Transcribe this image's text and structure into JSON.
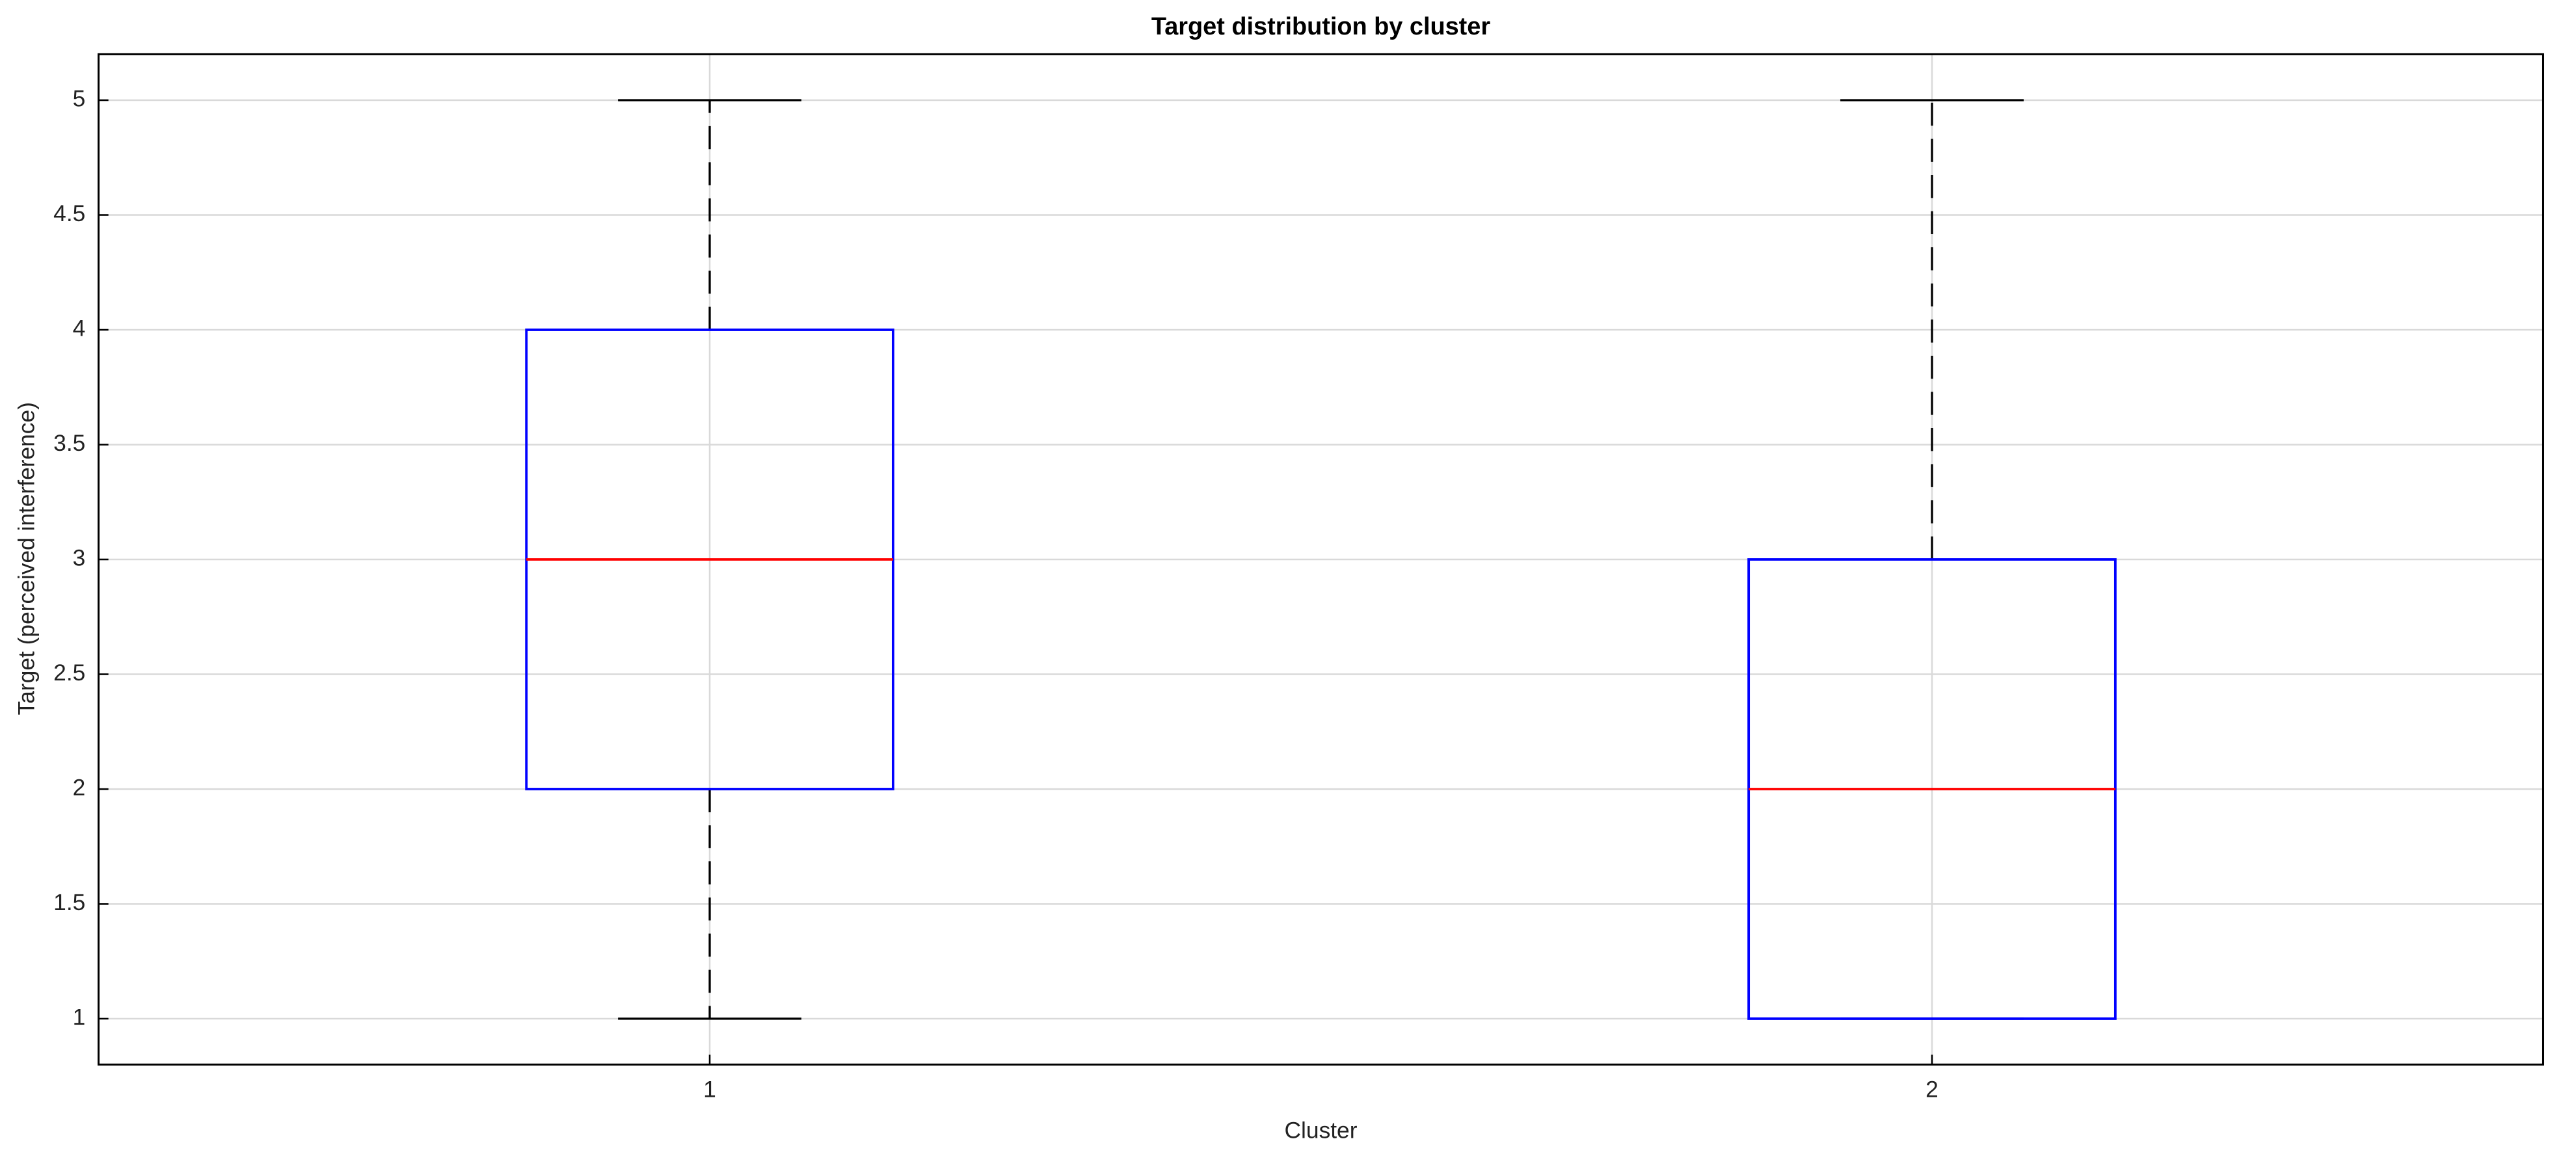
{
  "chart_data": {
    "type": "box",
    "title": "Target distribution by cluster",
    "xlabel": "Cluster",
    "ylabel": "Target (perceived interference)",
    "categories": [
      "1",
      "2"
    ],
    "boxes": [
      {
        "min": 1,
        "q1": 2,
        "median": 3,
        "q3": 4,
        "max": 5
      },
      {
        "min": 1,
        "q1": 1,
        "median": 2,
        "q3": 3,
        "max": 5
      }
    ],
    "box_color": "#0000ff",
    "median_color": "#ff0000",
    "whisker_color": "#000000",
    "xlim": [
      0.5,
      2.5
    ],
    "ylim": [
      0.8,
      5.2
    ],
    "yticks": [
      1,
      1.5,
      2,
      2.5,
      3,
      3.5,
      4,
      4.5,
      5
    ],
    "grid": true
  }
}
